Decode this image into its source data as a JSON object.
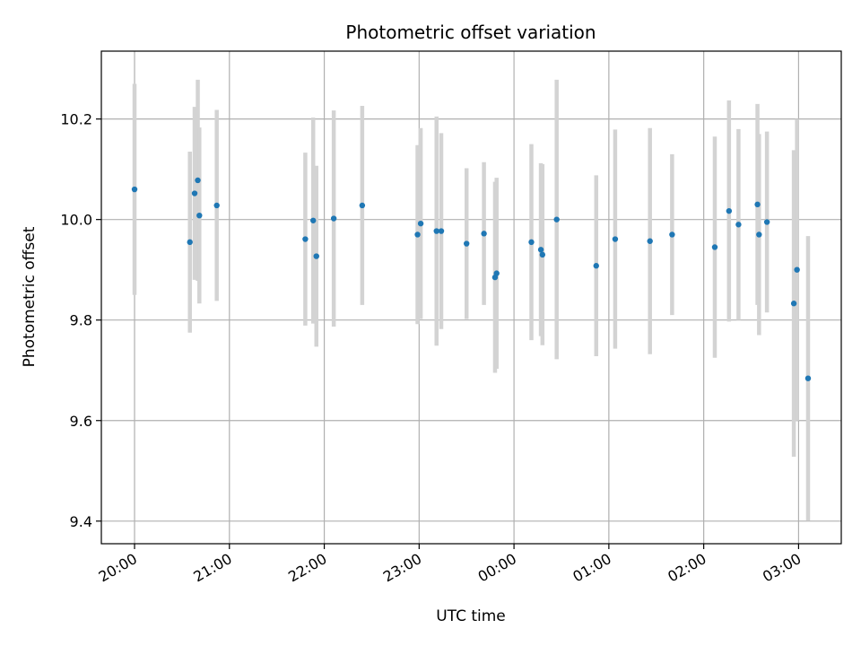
{
  "chart_data": {
    "type": "scatter",
    "title": "Photometric offset variation",
    "xlabel": "UTC time",
    "ylabel": "Photometric offset",
    "grid": true,
    "x_tick_labels": [
      "20:00",
      "21:00",
      "22:00",
      "23:00",
      "00:00",
      "01:00",
      "02:00",
      "03:00"
    ],
    "y_tick_labels": [
      "9.4",
      "9.6",
      "9.8",
      "10.0",
      "10.2"
    ],
    "x_ticks": [
      "2023-01-01T20:00",
      "2023-01-01T21:00",
      "2023-01-01T22:00",
      "2023-01-01T23:00",
      "2023-01-02T00:00",
      "2023-01-02T01:00",
      "2023-01-02T02:00",
      "2023-01-02T03:00"
    ],
    "y_ticks": [
      9.4,
      9.6,
      9.8,
      10.0,
      10.2
    ],
    "xlim": [
      "2023-01-01T19:39",
      "2023-01-02T03:27"
    ],
    "ylim": [
      9.355,
      10.335
    ],
    "marker_color": "#1f77b4",
    "errorbar_color": "#d3d3d3",
    "grid_color": "#b0b0b0",
    "points": [
      {
        "x": "2023-01-01T20:00",
        "y": 10.06,
        "err": 0.21
      },
      {
        "x": "2023-01-01T20:35",
        "y": 9.955,
        "err": 0.18
      },
      {
        "x": "2023-01-01T20:38",
        "y": 10.052,
        "err": 0.172
      },
      {
        "x": "2023-01-01T20:40",
        "y": 10.078,
        "err": 0.2
      },
      {
        "x": "2023-01-01T20:41",
        "y": 10.008,
        "err": 0.175
      },
      {
        "x": "2023-01-01T20:52",
        "y": 10.028,
        "err": 0.19
      },
      {
        "x": "2023-01-01T21:48",
        "y": 9.961,
        "err": 0.172
      },
      {
        "x": "2023-01-01T21:53",
        "y": 9.998,
        "err": 0.205
      },
      {
        "x": "2023-01-01T21:55",
        "y": 9.927,
        "err": 0.18
      },
      {
        "x": "2023-01-01T22:06",
        "y": 10.002,
        "err": 0.215
      },
      {
        "x": "2023-01-01T22:24",
        "y": 10.028,
        "err": 0.198
      },
      {
        "x": "2023-01-01T22:59",
        "y": 9.97,
        "err": 0.178
      },
      {
        "x": "2023-01-01T23:01",
        "y": 9.992,
        "err": 0.19
      },
      {
        "x": "2023-01-01T23:11",
        "y": 9.977,
        "err": 0.228
      },
      {
        "x": "2023-01-01T23:14",
        "y": 9.977,
        "err": 0.195
      },
      {
        "x": "2023-01-01T23:30",
        "y": 9.952,
        "err": 0.15
      },
      {
        "x": "2023-01-01T23:41",
        "y": 9.972,
        "err": 0.142
      },
      {
        "x": "2023-01-01T23:48",
        "y": 9.885,
        "err": 0.19
      },
      {
        "x": "2023-01-01T23:49",
        "y": 9.893,
        "err": 0.19
      },
      {
        "x": "2023-01-02T00:11",
        "y": 9.955,
        "err": 0.195
      },
      {
        "x": "2023-01-02T00:17",
        "y": 9.94,
        "err": 0.172
      },
      {
        "x": "2023-01-02T00:18",
        "y": 9.93,
        "err": 0.18
      },
      {
        "x": "2023-01-02T00:27",
        "y": 10.0,
        "err": 0.278
      },
      {
        "x": "2023-01-02T00:52",
        "y": 9.908,
        "err": 0.18
      },
      {
        "x": "2023-01-02T01:04",
        "y": 9.961,
        "err": 0.218
      },
      {
        "x": "2023-01-02T01:26",
        "y": 9.957,
        "err": 0.225
      },
      {
        "x": "2023-01-02T01:40",
        "y": 9.97,
        "err": 0.16
      },
      {
        "x": "2023-01-02T02:07",
        "y": 9.945,
        "err": 0.22
      },
      {
        "x": "2023-01-02T02:16",
        "y": 10.017,
        "err": 0.22
      },
      {
        "x": "2023-01-02T02:22",
        "y": 9.99,
        "err": 0.19
      },
      {
        "x": "2023-01-02T02:34",
        "y": 10.03,
        "err": 0.2
      },
      {
        "x": "2023-01-02T02:35",
        "y": 9.97,
        "err": 0.2
      },
      {
        "x": "2023-01-02T02:40",
        "y": 9.995,
        "err": 0.18
      },
      {
        "x": "2023-01-02T02:57",
        "y": 9.833,
        "err": 0.305
      },
      {
        "x": "2023-01-02T02:59",
        "y": 9.9,
        "err": 0.3
      },
      {
        "x": "2023-01-02T03:06",
        "y": 9.684,
        "err": 0.283
      }
    ]
  }
}
